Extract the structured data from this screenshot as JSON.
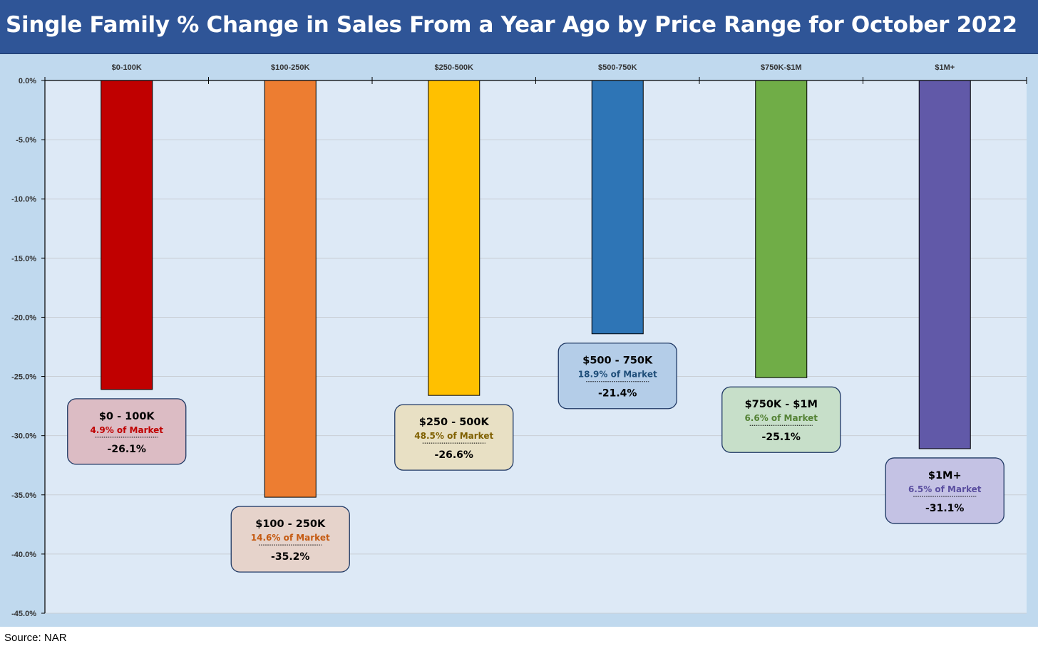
{
  "title": "Single Family % Change in Sales From a Year Ago by Price Range for October 2022",
  "source": "Source: NAR",
  "chart_data": {
    "type": "bar",
    "title": "Single Family % Change in Sales From a Year Ago by Price Range for October 2022",
    "xlabel": "",
    "ylabel": "",
    "x_axis_position": "top",
    "categories": [
      "$0-100K",
      "$100-250K",
      "$250-500K",
      "$500-750K",
      "$750K-$1M",
      "$1M+"
    ],
    "values": [
      -26.1,
      -35.2,
      -26.6,
      -21.4,
      -25.1,
      -31.1
    ],
    "ylim": [
      -45,
      0
    ],
    "yticks": [
      "0.0%",
      "-5.0%",
      "-10.0%",
      "-15.0%",
      "-20.0%",
      "-25.0%",
      "-30.0%",
      "-35.0%",
      "-40.0%",
      "-45.0%"
    ],
    "grid": true,
    "legend": "none",
    "colors": [
      "#c00000",
      "#ed7d31",
      "#ffc000",
      "#2e75b6",
      "#70ad47",
      "#6159a8"
    ],
    "annotations": [
      {
        "title": "$0 - 100K",
        "share": "4.9% of Market",
        "value_label": "-26.1%",
        "box_color": "#dcbcc4",
        "share_color": "#c00000"
      },
      {
        "title": "$100 - 250K",
        "share": "14.6% of Market",
        "value_label": "-35.2%",
        "box_color": "#e6d3cb",
        "share_color": "#c55a11"
      },
      {
        "title": "$250 - 500K",
        "share": "48.5% of Market",
        "value_label": "-26.6%",
        "box_color": "#e8e0c4",
        "share_color": "#7f6000"
      },
      {
        "title": "$500 - 750K",
        "share": "18.9% of Market",
        "value_label": "-21.4%",
        "box_color": "#b4cde8",
        "share_color": "#1f4e79"
      },
      {
        "title": "$750K - $1M",
        "share": "6.6% of Market",
        "value_label": "-25.1%",
        "box_color": "#c7dfc9",
        "share_color": "#548235"
      },
      {
        "title": "$1M+",
        "share": "6.5% of Market",
        "value_label": "-31.1%",
        "box_color": "#c4c2e4",
        "share_color": "#5b4fa0"
      }
    ]
  }
}
